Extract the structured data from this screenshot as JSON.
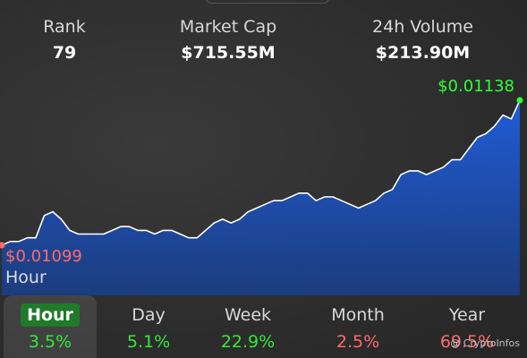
{
  "stats": {
    "rank": {
      "label": "Rank",
      "value": "79"
    },
    "market_cap": {
      "label": "Market Cap",
      "value": "$715.55M"
    },
    "volume": {
      "label": "24h Volume",
      "value": "$213.90M"
    }
  },
  "chart": {
    "high_label": "$0.01138",
    "low_label": "$0.01099",
    "period_label": "Hour",
    "fill_color": "#1f5bd6",
    "high_color": "#30ff30",
    "low_color": "#ff6b6b"
  },
  "chart_data": {
    "type": "area",
    "y_min": 0.01099,
    "y_max": 0.01138,
    "values": [
      0.01099,
      0.011,
      0.011,
      0.01101,
      0.01101,
      0.01107,
      0.01108,
      0.01106,
      0.01103,
      0.01102,
      0.01102,
      0.01102,
      0.01102,
      0.01103,
      0.01104,
      0.01104,
      0.01103,
      0.01103,
      0.01102,
      0.01103,
      0.01103,
      0.01102,
      0.01101,
      0.01101,
      0.01103,
      0.01105,
      0.01106,
      0.01105,
      0.01106,
      0.01108,
      0.01109,
      0.0111,
      0.01111,
      0.01111,
      0.01112,
      0.01113,
      0.01113,
      0.01111,
      0.01112,
      0.01112,
      0.01111,
      0.0111,
      0.01109,
      0.0111,
      0.01111,
      0.01113,
      0.01114,
      0.01118,
      0.01119,
      0.01119,
      0.01118,
      0.01119,
      0.0112,
      0.01122,
      0.01122,
      0.01125,
      0.01128,
      0.01129,
      0.01131,
      0.01134,
      0.01133,
      0.01138
    ]
  },
  "tabs": [
    {
      "name": "Hour",
      "pct": "3.5%",
      "trend": "up"
    },
    {
      "name": "Day",
      "pct": "5.1%",
      "trend": "up"
    },
    {
      "name": "Week",
      "pct": "22.9%",
      "trend": "up"
    },
    {
      "name": "Month",
      "pct": "2.5%",
      "trend": "down"
    },
    {
      "name": "Year",
      "pct": "69.5%",
      "trend": "down"
    }
  ],
  "watermark": "@ CryptoInfos"
}
